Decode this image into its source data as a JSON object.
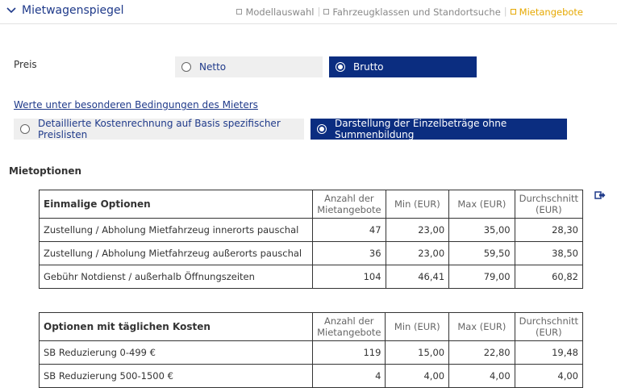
{
  "header": {
    "title": "Mietwagenspiegel",
    "steps": [
      {
        "label": "Modellauswahl",
        "active": false
      },
      {
        "label": "Fahrzeugklassen und Standortsuche",
        "active": false
      },
      {
        "label": "Mietangebote",
        "active": true
      }
    ],
    "colors": {
      "brand": "#1f3a8a",
      "active_step": "#e6a800",
      "selected": "#0b2d80"
    }
  },
  "price": {
    "label": "Preis",
    "options": [
      {
        "label": "Netto",
        "selected": false
      },
      {
        "label": "Brutto",
        "selected": true
      }
    ]
  },
  "conditions_link": "Werte unter besonderen Bedingungen des Mieters",
  "calc_mode": {
    "options": [
      {
        "label": "Detaillierte Kostenrechnung auf Basis spezifischer Preislisten",
        "selected": false
      },
      {
        "label": "Darstellung der Einzelbeträge ohne Summenbildung",
        "selected": true
      }
    ]
  },
  "section_title": "Mietoptionen",
  "export_icon": "export-icon",
  "tables": {
    "one_time": {
      "headers": [
        "Einmalige Optionen",
        "Anzahl der Mietangebote",
        "Min (EUR)",
        "Max (EUR)",
        "Durchschnitt (EUR)"
      ],
      "rows": [
        [
          "Zustellung / Abholung Mietfahrzeug innerorts pauschal",
          "47",
          "23,00",
          "35,00",
          "28,30"
        ],
        [
          "Zustellung / Abholung Mietfahrzeug außerorts pauschal",
          "36",
          "23,00",
          "59,50",
          "38,50"
        ],
        [
          "Gebühr Notdienst / außerhalb Öffnungszeiten",
          "104",
          "46,41",
          "79,00",
          "60,82"
        ]
      ]
    },
    "daily": {
      "headers": [
        "Optionen mit täglichen Kosten",
        "Anzahl der Mietangebote",
        "Min (EUR)",
        "Max (EUR)",
        "Durchschnitt (EUR)"
      ],
      "rows": [
        [
          "SB Reduzierung 0-499 €",
          "119",
          "15,00",
          "22,80",
          "19,48"
        ],
        [
          "SB Reduzierung 500-1500 €",
          "4",
          "4,00",
          "4,00",
          "4,00"
        ]
      ]
    }
  }
}
